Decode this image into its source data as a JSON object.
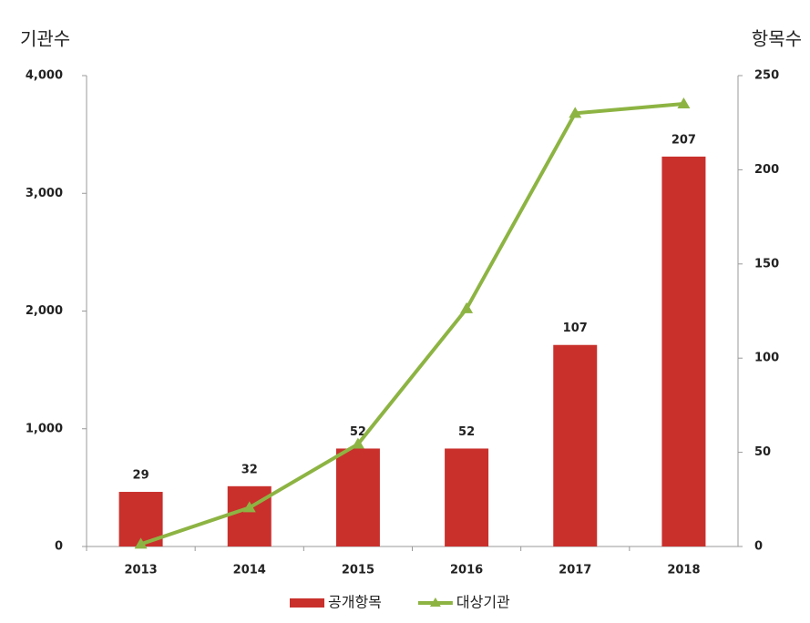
{
  "chart_data": {
    "type": "combo",
    "y_label": "기관수",
    "y2_label": "항목수",
    "categories": [
      "2013",
      "2014",
      "2015",
      "2016",
      "2017",
      "2018"
    ],
    "series": [
      {
        "name": "공개항목",
        "type": "bar",
        "axis": "y2",
        "color": "#c9302c",
        "values": [
          29,
          32,
          52,
          52,
          107,
          207
        ]
      },
      {
        "name": "대상기관",
        "type": "line",
        "color": "#8db443",
        "values": [
          20,
          330,
          870,
          2020,
          3680,
          3760
        ]
      }
    ],
    "ylim": [
      0,
      4000
    ],
    "yticks": [
      0,
      {
        "value": 1000,
        "label": "1,000"
      },
      {
        "value": 2000,
        "label": "2,000"
      },
      {
        "value": 3000,
        "label": "3,000"
      },
      {
        "value": 4000,
        "label": "4,000"
      }
    ],
    "y2lim": [
      0,
      250
    ],
    "y2ticks": [
      0,
      50,
      100,
      150,
      200,
      250
    ],
    "legend": "bottom"
  }
}
